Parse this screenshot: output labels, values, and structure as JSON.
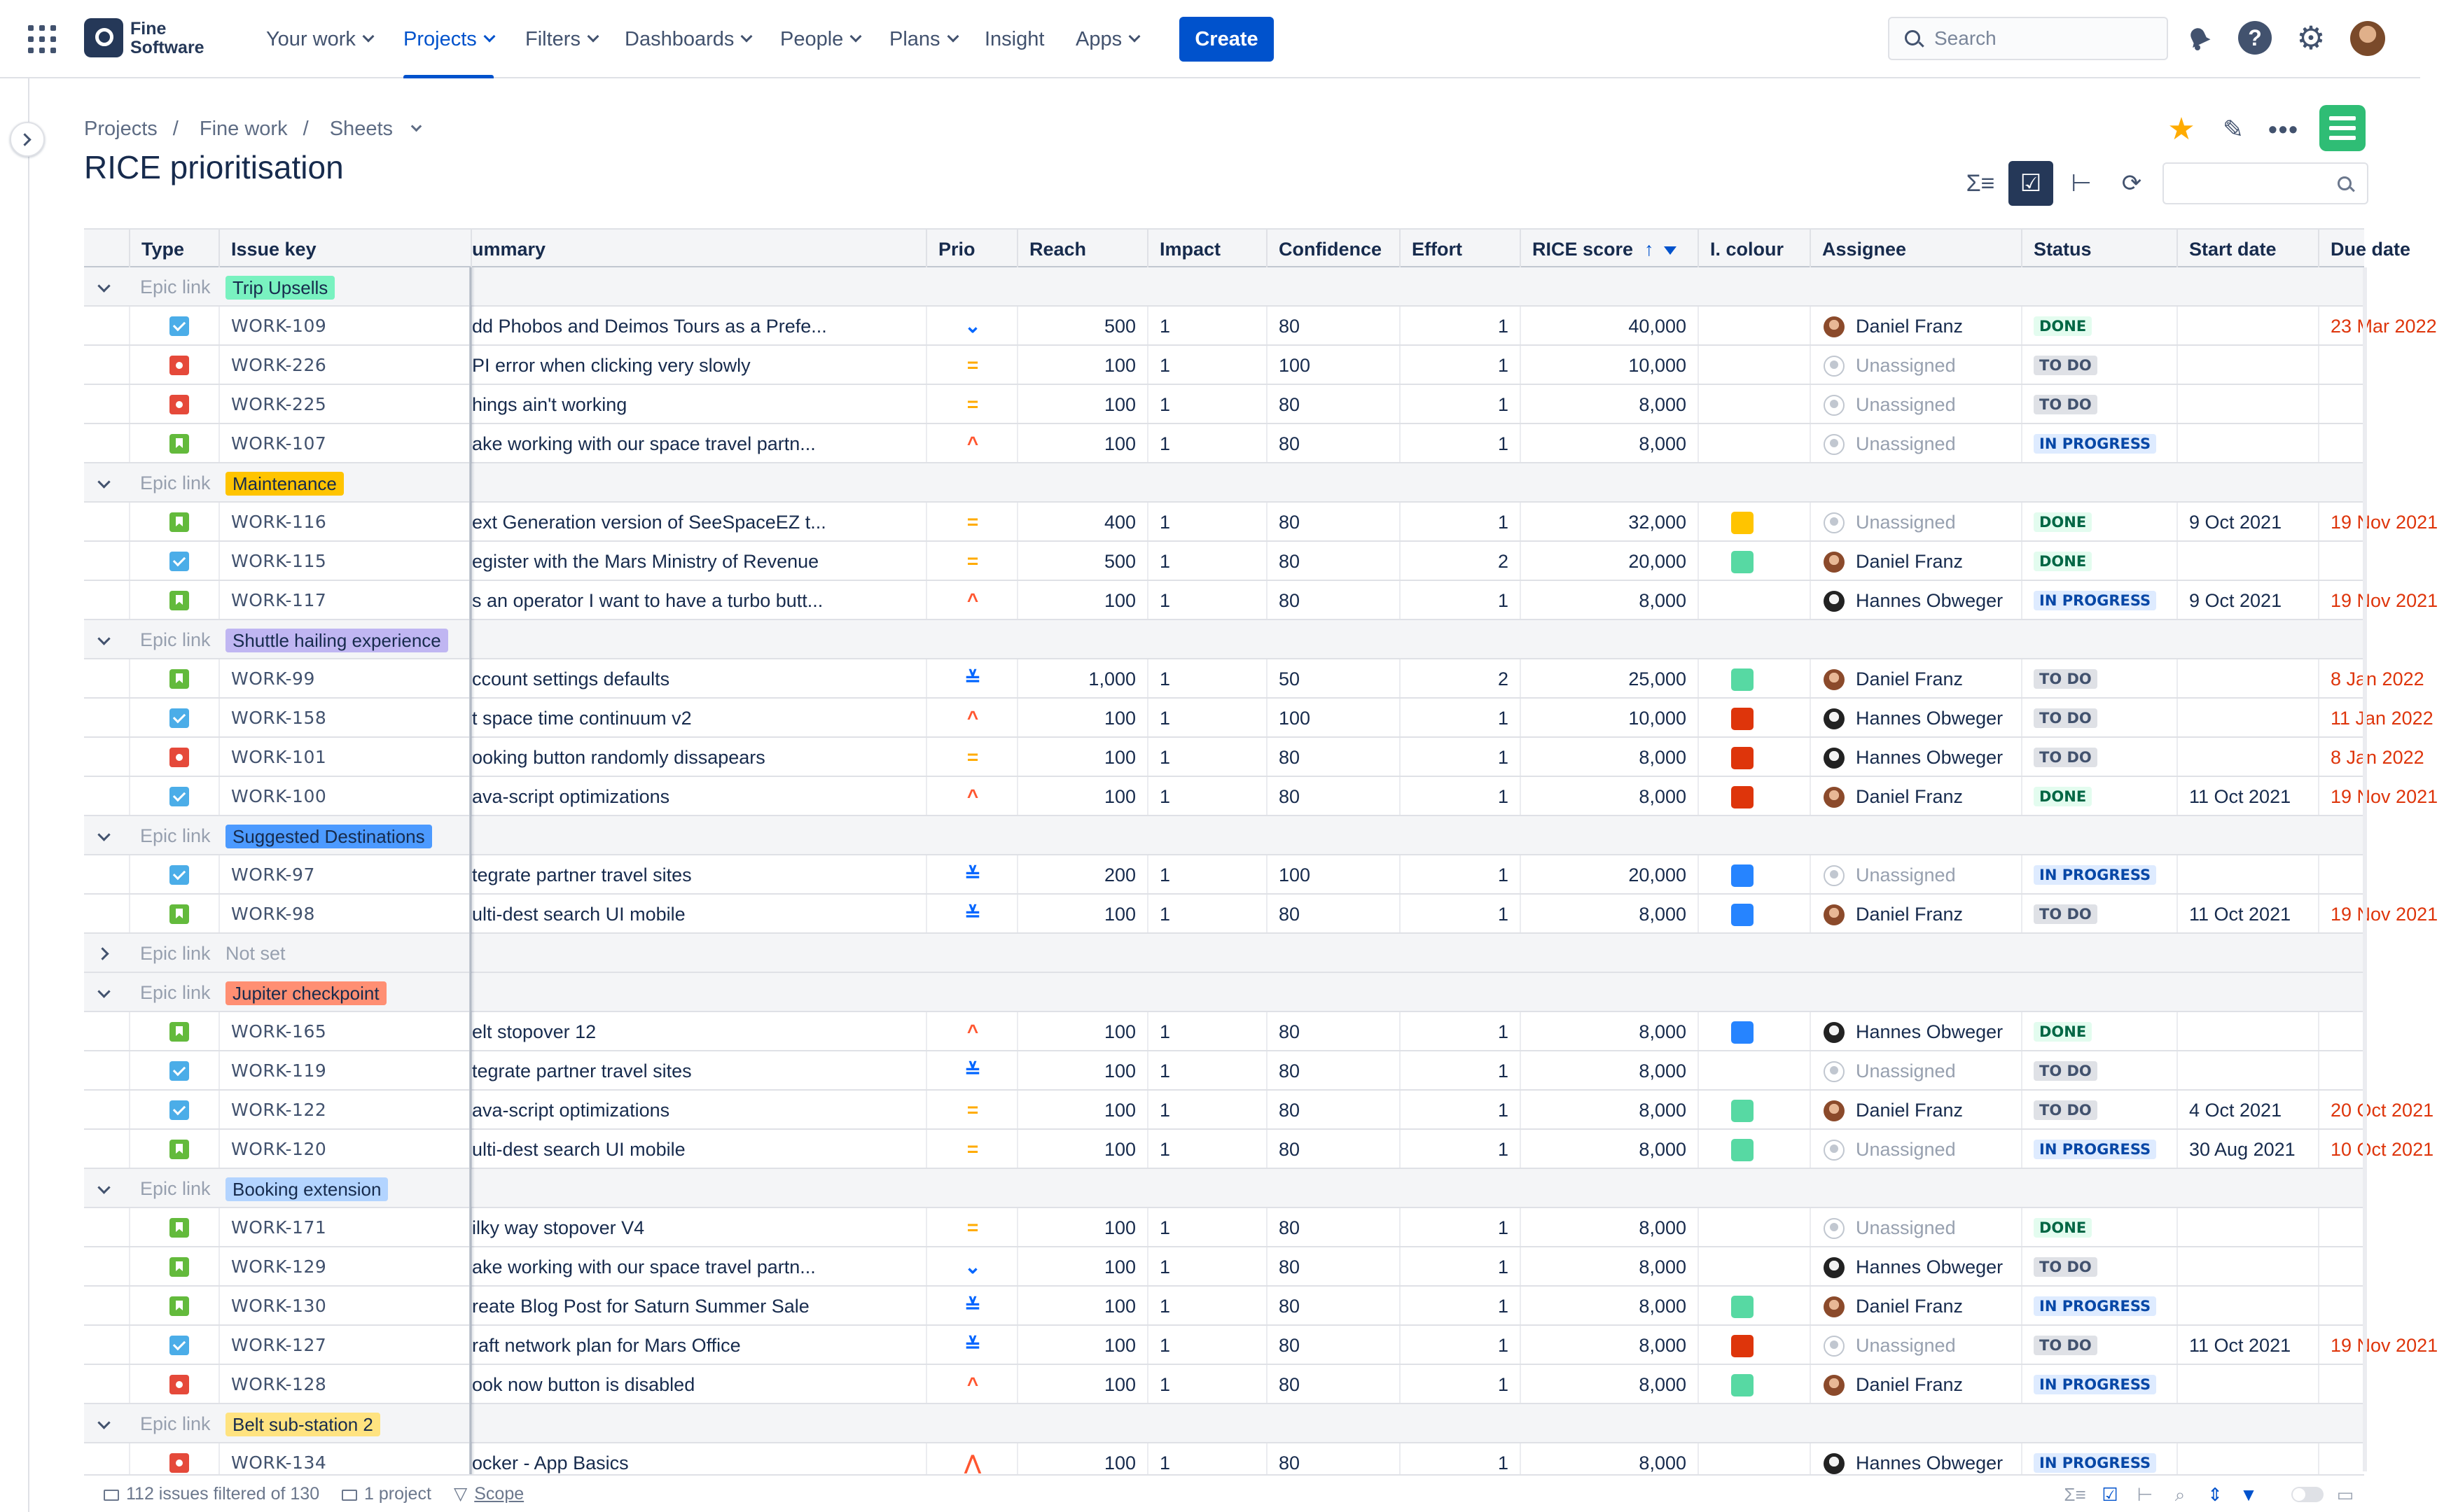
{
  "nav": {
    "logo_line1": "Fine",
    "logo_line2": "Software",
    "items": [
      {
        "label": "Your work",
        "dropdown": true,
        "active": false
      },
      {
        "label": "Projects",
        "dropdown": true,
        "active": true
      },
      {
        "label": "Filters",
        "dropdown": true,
        "active": false
      },
      {
        "label": "Dashboards",
        "dropdown": true,
        "active": false
      },
      {
        "label": "People",
        "dropdown": true,
        "active": false
      },
      {
        "label": "Plans",
        "dropdown": true,
        "active": false
      },
      {
        "label": "Insight",
        "dropdown": false,
        "active": false
      },
      {
        "label": "Apps",
        "dropdown": true,
        "active": false
      }
    ],
    "create_label": "Create",
    "search_placeholder": "Search",
    "help_glyph": "?",
    "gear_glyph": "⚙"
  },
  "breadcrumbs": [
    "Projects",
    "Fine work",
    "Sheets"
  ],
  "breadcrumb_separator": "/",
  "page_title": "RICE prioritisation",
  "header_icons": {
    "star": "★",
    "edit": "✎",
    "more": "•••"
  },
  "toolbar": {
    "sum": "Σ≡",
    "checklist": "☑",
    "hierarchy": "⊢",
    "refresh": "⟳"
  },
  "columns": {
    "type": "Type",
    "key": "Issue key",
    "summary": "ummary",
    "prio": "Prio",
    "reach": "Reach",
    "impact": "Impact",
    "confidence": "Confidence",
    "effort": "Effort",
    "rice": "RICE score",
    "rice_sort": "↑",
    "colour": "I. colour",
    "assignee": "Assignee",
    "status": "Status",
    "start": "Start date",
    "due": "Due date"
  },
  "epic_link_label": "Epic link",
  "colors": {
    "yellow": "#ffc400",
    "green": "#57d9a3",
    "red": "#de350b",
    "blue": "#2684ff",
    "upsells": "#79f2c0",
    "maintenance": "#ffc400",
    "shuttle": "#c0b6f2",
    "suggested": "#4c9aff",
    "jupiter": "#ff8f73",
    "booking": "#b3d4ff",
    "belt": "#ffe380"
  },
  "priority_glyphs": {
    "medium": "=",
    "high": "^",
    "highest": "⋀",
    "low": "⌄",
    "lowest": "≚"
  },
  "statuses": {
    "done": "DONE",
    "todo": "TO DO",
    "inprogress": "IN PROGRESS"
  },
  "groups": [
    {
      "epic": "Trip Upsells",
      "lozenge": "upsells",
      "expanded": true,
      "issues": [
        {
          "type": "task",
          "key": "WORK-109",
          "summary": "dd Phobos and Deimos Tours as a Prefe...",
          "prio": "low",
          "reach": "500",
          "impact": "1",
          "confidence": "80",
          "effort": "1",
          "rice": "40,000",
          "colour": "",
          "assignee": "Daniel Franz",
          "status": "done",
          "start": "",
          "due": "23 Mar 2022",
          "overdue": true
        },
        {
          "type": "bug",
          "key": "WORK-226",
          "summary": "PI error when clicking very slowly",
          "prio": "medium",
          "reach": "100",
          "impact": "1",
          "confidence": "100",
          "effort": "1",
          "rice": "10,000",
          "colour": "",
          "assignee": "Unassigned",
          "status": "todo",
          "start": "",
          "due": "",
          "overdue": false
        },
        {
          "type": "bug",
          "key": "WORK-225",
          "summary": "hings ain't working",
          "prio": "medium",
          "reach": "100",
          "impact": "1",
          "confidence": "80",
          "effort": "1",
          "rice": "8,000",
          "colour": "",
          "assignee": "Unassigned",
          "status": "todo",
          "start": "",
          "due": "",
          "overdue": false
        },
        {
          "type": "story",
          "key": "WORK-107",
          "summary": "ake working with our space travel partn...",
          "prio": "high",
          "reach": "100",
          "impact": "1",
          "confidence": "80",
          "effort": "1",
          "rice": "8,000",
          "colour": "",
          "assignee": "Unassigned",
          "status": "inprogress",
          "start": "",
          "due": "",
          "overdue": false
        }
      ]
    },
    {
      "epic": "Maintenance",
      "lozenge": "maintenance",
      "expanded": true,
      "issues": [
        {
          "type": "story",
          "key": "WORK-116",
          "summary": "ext Generation version of SeeSpaceEZ t...",
          "prio": "medium",
          "reach": "400",
          "impact": "1",
          "confidence": "80",
          "effort": "1",
          "rice": "32,000",
          "colour": "yellow",
          "assignee": "Unassigned",
          "status": "done",
          "start": "9 Oct 2021",
          "due": "19 Nov 2021",
          "overdue": true
        },
        {
          "type": "task",
          "key": "WORK-115",
          "summary": "egister with the Mars Ministry of Revenue",
          "prio": "medium",
          "reach": "500",
          "impact": "1",
          "confidence": "80",
          "effort": "2",
          "rice": "20,000",
          "colour": "green",
          "assignee": "Daniel Franz",
          "status": "done",
          "start": "",
          "due": "",
          "overdue": false
        },
        {
          "type": "story",
          "key": "WORK-117",
          "summary": "s an operator I want to have a turbo butt...",
          "prio": "high",
          "reach": "100",
          "impact": "1",
          "confidence": "80",
          "effort": "1",
          "rice": "8,000",
          "colour": "",
          "assignee": "Hannes Obweger",
          "status": "inprogress",
          "start": "9 Oct 2021",
          "due": "19 Nov 2021",
          "overdue": true
        }
      ]
    },
    {
      "epic": "Shuttle hailing experience",
      "lozenge": "shuttle",
      "expanded": true,
      "issues": [
        {
          "type": "story",
          "key": "WORK-99",
          "summary": "ccount settings defaults",
          "prio": "lowest",
          "reach": "1,000",
          "impact": "1",
          "confidence": "50",
          "effort": "2",
          "rice": "25,000",
          "colour": "green",
          "assignee": "Daniel Franz",
          "status": "todo",
          "start": "",
          "due": "8 Jan 2022",
          "overdue": true
        },
        {
          "type": "task",
          "key": "WORK-158",
          "summary": "t space time continuum v2",
          "prio": "high",
          "reach": "100",
          "impact": "1",
          "confidence": "100",
          "effort": "1",
          "rice": "10,000",
          "colour": "red",
          "assignee": "Hannes Obweger",
          "status": "todo",
          "start": "",
          "due": "11 Jan 2022",
          "overdue": true
        },
        {
          "type": "bug",
          "key": "WORK-101",
          "summary": "ooking button randomly dissapears",
          "prio": "medium",
          "reach": "100",
          "impact": "1",
          "confidence": "80",
          "effort": "1",
          "rice": "8,000",
          "colour": "red",
          "assignee": "Hannes Obweger",
          "status": "todo",
          "start": "",
          "due": "8 Jan 2022",
          "overdue": true
        },
        {
          "type": "task",
          "key": "WORK-100",
          "summary": "ava-script optimizations",
          "prio": "high",
          "reach": "100",
          "impact": "1",
          "confidence": "80",
          "effort": "1",
          "rice": "8,000",
          "colour": "red",
          "assignee": "Daniel Franz",
          "status": "done",
          "start": "11 Oct 2021",
          "due": "19 Nov 2021",
          "overdue": true
        }
      ]
    },
    {
      "epic": "Suggested Destinations",
      "lozenge": "suggested",
      "expanded": true,
      "issues": [
        {
          "type": "task",
          "key": "WORK-97",
          "summary": "tegrate partner travel sites",
          "prio": "lowest",
          "reach": "200",
          "impact": "1",
          "confidence": "100",
          "effort": "1",
          "rice": "20,000",
          "colour": "blue",
          "assignee": "Unassigned",
          "status": "inprogress",
          "start": "",
          "due": "",
          "overdue": false
        },
        {
          "type": "story",
          "key": "WORK-98",
          "summary": "ulti-dest search UI mobile",
          "prio": "lowest",
          "reach": "100",
          "impact": "1",
          "confidence": "80",
          "effort": "1",
          "rice": "8,000",
          "colour": "blue",
          "assignee": "Daniel Franz",
          "status": "todo",
          "start": "11 Oct 2021",
          "due": "19 Nov 2021",
          "overdue": true
        }
      ]
    },
    {
      "epic": "Not set",
      "lozenge": "",
      "expanded": false,
      "issues": []
    },
    {
      "epic": "Jupiter checkpoint",
      "lozenge": "jupiter",
      "expanded": true,
      "issues": [
        {
          "type": "story",
          "key": "WORK-165",
          "summary": "elt stopover 12",
          "prio": "high",
          "reach": "100",
          "impact": "1",
          "confidence": "80",
          "effort": "1",
          "rice": "8,000",
          "colour": "blue",
          "assignee": "Hannes Obweger",
          "status": "done",
          "start": "",
          "due": "",
          "overdue": false
        },
        {
          "type": "task",
          "key": "WORK-119",
          "summary": "tegrate partner travel sites",
          "prio": "lowest",
          "reach": "100",
          "impact": "1",
          "confidence": "80",
          "effort": "1",
          "rice": "8,000",
          "colour": "",
          "assignee": "Unassigned",
          "status": "todo",
          "start": "",
          "due": "",
          "overdue": false
        },
        {
          "type": "task",
          "key": "WORK-122",
          "summary": "ava-script optimizations",
          "prio": "medium",
          "reach": "100",
          "impact": "1",
          "confidence": "80",
          "effort": "1",
          "rice": "8,000",
          "colour": "green",
          "assignee": "Daniel Franz",
          "status": "todo",
          "start": "4 Oct 2021",
          "due": "20 Oct 2021",
          "overdue": true
        },
        {
          "type": "story",
          "key": "WORK-120",
          "summary": "ulti-dest search UI mobile",
          "prio": "medium",
          "reach": "100",
          "impact": "1",
          "confidence": "80",
          "effort": "1",
          "rice": "8,000",
          "colour": "green",
          "assignee": "Unassigned",
          "status": "inprogress",
          "start": "30 Aug 2021",
          "due": "10 Oct 2021",
          "overdue": true
        }
      ]
    },
    {
      "epic": "Booking extension",
      "lozenge": "booking",
      "expanded": true,
      "issues": [
        {
          "type": "story",
          "key": "WORK-171",
          "summary": "ilky way stopover V4",
          "prio": "medium",
          "reach": "100",
          "impact": "1",
          "confidence": "80",
          "effort": "1",
          "rice": "8,000",
          "colour": "",
          "assignee": "Unassigned",
          "status": "done",
          "start": "",
          "due": "",
          "overdue": false
        },
        {
          "type": "story",
          "key": "WORK-129",
          "summary": "ake working with our space travel partn...",
          "prio": "low",
          "reach": "100",
          "impact": "1",
          "confidence": "80",
          "effort": "1",
          "rice": "8,000",
          "colour": "",
          "assignee": "Hannes Obweger",
          "status": "todo",
          "start": "",
          "due": "",
          "overdue": false
        },
        {
          "type": "story",
          "key": "WORK-130",
          "summary": "reate Blog Post for Saturn Summer Sale",
          "prio": "lowest",
          "reach": "100",
          "impact": "1",
          "confidence": "80",
          "effort": "1",
          "rice": "8,000",
          "colour": "green",
          "assignee": "Daniel Franz",
          "status": "inprogress",
          "start": "",
          "due": "",
          "overdue": false
        },
        {
          "type": "task",
          "key": "WORK-127",
          "summary": "raft network plan for Mars Office",
          "prio": "lowest",
          "reach": "100",
          "impact": "1",
          "confidence": "80",
          "effort": "1",
          "rice": "8,000",
          "colour": "red",
          "assignee": "Unassigned",
          "status": "todo",
          "start": "11 Oct 2021",
          "due": "19 Nov 2021",
          "overdue": true
        },
        {
          "type": "bug",
          "key": "WORK-128",
          "summary": "ook now button is disabled",
          "prio": "high",
          "reach": "100",
          "impact": "1",
          "confidence": "80",
          "effort": "1",
          "rice": "8,000",
          "colour": "green",
          "assignee": "Daniel Franz",
          "status": "inprogress",
          "start": "",
          "due": "",
          "overdue": false
        }
      ]
    },
    {
      "epic": "Belt sub-station 2",
      "lozenge": "belt",
      "expanded": true,
      "issues": [
        {
          "type": "bug",
          "key": "WORK-134",
          "summary": "ocker - App Basics",
          "prio": "highest",
          "reach": "100",
          "impact": "1",
          "confidence": "80",
          "effort": "1",
          "rice": "8,000",
          "colour": "",
          "assignee": "Hannes Obweger",
          "status": "inprogress",
          "start": "",
          "due": "",
          "overdue": false
        }
      ]
    }
  ],
  "footer": {
    "filtered": "112 issues filtered of 130",
    "projects": "1 project",
    "scope": "Scope"
  }
}
